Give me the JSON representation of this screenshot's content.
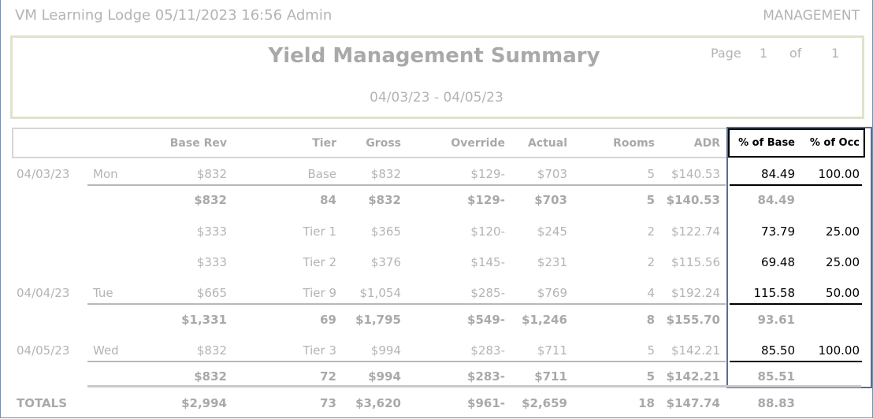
{
  "header": {
    "left": "VM Learning Lodge 05/11/2023 16:56  Admin",
    "right": "MANAGEMENT"
  },
  "report": {
    "title": "Yield Management Summary",
    "page_label": "Page",
    "page": "1",
    "of_label": "of",
    "pages": "1",
    "date_range": "04/03/23 - 04/05/23"
  },
  "table": {
    "columns": [
      "Base Rev",
      "Tier",
      "Gross",
      "Override",
      "Actual",
      "Rooms",
      "ADR",
      "% of Base",
      "% of Occ"
    ],
    "rows": [
      {
        "date": "04/03/23",
        "day": "Mon",
        "base_rev": "$832",
        "tier": "Base",
        "gross": "$832",
        "override": "$129-",
        "actual": "$703",
        "rooms": "5",
        "adr": "$140.53",
        "pct_base": "84.49",
        "pct_occ": "100.00"
      },
      {
        "bold": true,
        "base_rev": "$832",
        "tier": "84",
        "gross": "$832",
        "override": "$129-",
        "actual": "$703",
        "rooms": "5",
        "adr": "$140.53",
        "pct_base": "84.49"
      },
      {
        "base_rev": "$333",
        "tier": "Tier 1",
        "gross": "$365",
        "override": "$120-",
        "actual": "$245",
        "rooms": "2",
        "adr": "$122.74",
        "pct_base": "73.79",
        "pct_occ": "25.00"
      },
      {
        "base_rev": "$333",
        "tier": "Tier 2",
        "gross": "$376",
        "override": "$145-",
        "actual": "$231",
        "rooms": "2",
        "adr": "$115.56",
        "pct_base": "69.48",
        "pct_occ": "25.00"
      },
      {
        "date": "04/04/23",
        "day": "Tue",
        "base_rev": "$665",
        "tier": "Tier 9",
        "gross": "$1,054",
        "override": "$285-",
        "actual": "$769",
        "rooms": "4",
        "adr": "$192.24",
        "pct_base": "115.58",
        "pct_occ": "50.00"
      },
      {
        "bold": true,
        "base_rev": "$1,331",
        "tier": "69",
        "gross": "$1,795",
        "override": "$549-",
        "actual": "$1,246",
        "rooms": "8",
        "adr": "$155.70",
        "pct_base": "93.61"
      },
      {
        "date": "04/05/23",
        "day": "Wed",
        "base_rev": "$832",
        "tier": "Tier 3",
        "gross": "$994",
        "override": "$283-",
        "actual": "$711",
        "rooms": "5",
        "adr": "$142.21",
        "pct_base": "85.50",
        "pct_occ": "100.00"
      },
      {
        "bold": true,
        "base_rev": "$832",
        "tier": "72",
        "gross": "$994",
        "override": "$283-",
        "actual": "$711",
        "rooms": "5",
        "adr": "$142.21",
        "pct_base": "85.51"
      },
      {
        "bold": true,
        "date": "TOTALS",
        "base_rev": "$2,994",
        "tier": "73",
        "gross": "$3,620",
        "override": "$961-",
        "actual": "$2,659",
        "rooms": "18",
        "adr": "$147.74",
        "pct_base": "88.83"
      }
    ]
  }
}
